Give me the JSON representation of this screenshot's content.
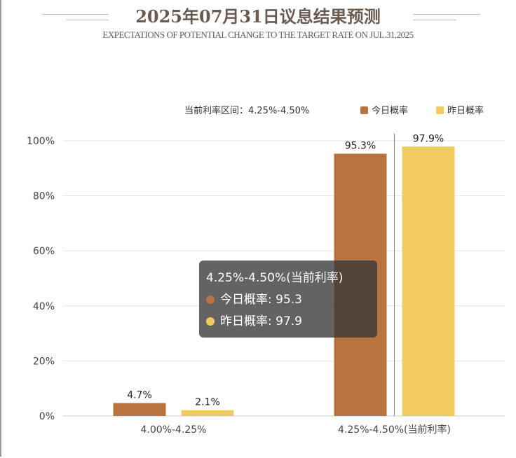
{
  "title": "2025年07月31日议息结果预测",
  "subtitle": "EXPECTATIONS OF POTENTIAL CHANGE TO THE TARGET RATE ON JUL.31,2025",
  "current_range_label": "当前利率区间：4.25%-4.50%",
  "tooltip": {
    "header": "4.25%-4.50%(当前利率)",
    "today": "今日概率: 95.3",
    "yesterday": "昨日概率: 97.9"
  },
  "chart_data": {
    "type": "bar",
    "categories": [
      "4.00%-4.25%",
      "4.25%-4.50%(当前利率)"
    ],
    "series": [
      {
        "name": "今日概率",
        "values": [
          4.7,
          95.3
        ],
        "labels": [
          "4.7%",
          "95.3%"
        ],
        "color": "#b8733f"
      },
      {
        "name": "昨日概率",
        "values": [
          2.1,
          97.9
        ],
        "labels": [
          "2.1%",
          "97.9%"
        ],
        "color": "#f2cb60"
      }
    ],
    "ylim": [
      0,
      100
    ],
    "yticks": [
      "0%",
      "20%",
      "40%",
      "60%",
      "80%",
      "100%"
    ],
    "grid": true,
    "legend": "top-right"
  }
}
